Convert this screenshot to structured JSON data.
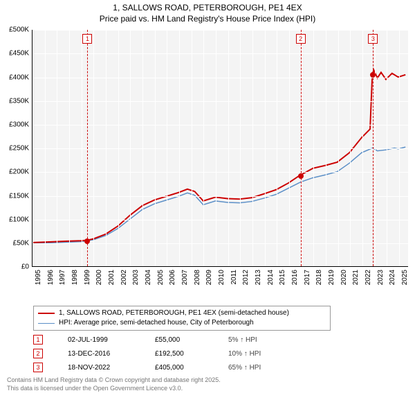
{
  "titles": {
    "line1": "1, SALLOWS ROAD, PETERBOROUGH, PE1 4EX",
    "line2": "Price paid vs. HM Land Registry's House Price Index (HPI)"
  },
  "chart": {
    "type": "line",
    "background": "#f4f4f4",
    "grid_color": "#ffffff",
    "xlim": [
      1995,
      2025.8
    ],
    "ylim": [
      0,
      500000
    ],
    "xticks": [
      1995,
      1996,
      1997,
      1998,
      1999,
      2000,
      2001,
      2002,
      2003,
      2004,
      2005,
      2006,
      2007,
      2008,
      2009,
      2010,
      2011,
      2012,
      2013,
      2014,
      2015,
      2016,
      2017,
      2018,
      2019,
      2020,
      2021,
      2022,
      2023,
      2024,
      2025
    ],
    "yticks": [
      0,
      50000,
      100000,
      150000,
      200000,
      250000,
      300000,
      350000,
      400000,
      450000,
      500000
    ],
    "ytick_labels": [
      "£0",
      "£50K",
      "£100K",
      "£150K",
      "£200K",
      "£250K",
      "£300K",
      "£350K",
      "£400K",
      "£450K",
      "£500K"
    ],
    "series": [
      {
        "id": "price_paid",
        "label": "1, SALLOWS ROAD, PETERBOROUGH, PE1 4EX (semi-detached house)",
        "color": "#cc0000",
        "width": 2,
        "points": [
          [
            1995.0,
            50000
          ],
          [
            1996.0,
            51000
          ],
          [
            1997.0,
            52000
          ],
          [
            1998.0,
            53000
          ],
          [
            1999.0,
            54000
          ],
          [
            1999.5,
            55000
          ],
          [
            2000.0,
            58000
          ],
          [
            2001.0,
            68000
          ],
          [
            2002.0,
            85000
          ],
          [
            2003.0,
            108000
          ],
          [
            2004.0,
            128000
          ],
          [
            2005.0,
            140000
          ],
          [
            2006.0,
            148000
          ],
          [
            2007.0,
            156000
          ],
          [
            2007.7,
            163000
          ],
          [
            2008.3,
            158000
          ],
          [
            2009.0,
            138000
          ],
          [
            2010.0,
            146000
          ],
          [
            2011.0,
            143000
          ],
          [
            2012.0,
            142000
          ],
          [
            2013.0,
            145000
          ],
          [
            2014.0,
            153000
          ],
          [
            2015.0,
            162000
          ],
          [
            2016.0,
            176000
          ],
          [
            2016.95,
            192500
          ],
          [
            2017.5,
            200000
          ],
          [
            2018.0,
            207000
          ],
          [
            2019.0,
            213000
          ],
          [
            2020.0,
            220000
          ],
          [
            2021.0,
            240000
          ],
          [
            2022.0,
            272000
          ],
          [
            2022.7,
            290000
          ],
          [
            2022.88,
            405000
          ],
          [
            2023.0,
            415000
          ],
          [
            2023.3,
            398000
          ],
          [
            2023.6,
            410000
          ],
          [
            2024.0,
            395000
          ],
          [
            2024.5,
            408000
          ],
          [
            2025.0,
            400000
          ],
          [
            2025.6,
            405000
          ]
        ]
      },
      {
        "id": "hpi",
        "label": "HPI: Average price, semi-detached house, City of Peterborough",
        "color": "#5b8fc7",
        "width": 1.5,
        "points": [
          [
            1995.0,
            48000
          ],
          [
            1996.0,
            49000
          ],
          [
            1997.0,
            50000
          ],
          [
            1998.0,
            51000
          ],
          [
            1999.0,
            52000
          ],
          [
            2000.0,
            56000
          ],
          [
            2001.0,
            65000
          ],
          [
            2002.0,
            80000
          ],
          [
            2003.0,
            100000
          ],
          [
            2004.0,
            120000
          ],
          [
            2005.0,
            132000
          ],
          [
            2006.0,
            140000
          ],
          [
            2007.0,
            148000
          ],
          [
            2007.7,
            155000
          ],
          [
            2008.3,
            150000
          ],
          [
            2009.0,
            130000
          ],
          [
            2010.0,
            138000
          ],
          [
            2011.0,
            135000
          ],
          [
            2012.0,
            134000
          ],
          [
            2013.0,
            137000
          ],
          [
            2014.0,
            144000
          ],
          [
            2015.0,
            152000
          ],
          [
            2016.0,
            165000
          ],
          [
            2017.0,
            178000
          ],
          [
            2018.0,
            187000
          ],
          [
            2019.0,
            193000
          ],
          [
            2020.0,
            200000
          ],
          [
            2021.0,
            218000
          ],
          [
            2022.0,
            240000
          ],
          [
            2022.9,
            250000
          ],
          [
            2023.3,
            244000
          ],
          [
            2024.0,
            246000
          ],
          [
            2024.7,
            250000
          ],
          [
            2025.0,
            248000
          ],
          [
            2025.6,
            252000
          ]
        ]
      }
    ],
    "markers": [
      {
        "n": "1",
        "x": 1999.5,
        "y": 55000,
        "color": "#cc0000"
      },
      {
        "n": "2",
        "x": 2016.95,
        "y": 192500,
        "color": "#cc0000"
      },
      {
        "n": "3",
        "x": 2022.88,
        "y": 405000,
        "color": "#cc0000"
      }
    ]
  },
  "legend": {
    "items": [
      {
        "color": "#cc0000",
        "width": 2,
        "label": "1, SALLOWS ROAD, PETERBOROUGH, PE1 4EX (semi-detached house)"
      },
      {
        "color": "#5b8fc7",
        "width": 1.5,
        "label": "HPI: Average price, semi-detached house, City of Peterborough"
      }
    ]
  },
  "sales": [
    {
      "n": "1",
      "date": "02-JUL-1999",
      "price": "£55,000",
      "delta": "5% ↑ HPI"
    },
    {
      "n": "2",
      "date": "13-DEC-2016",
      "price": "£192,500",
      "delta": "10% ↑ HPI"
    },
    {
      "n": "3",
      "date": "18-NOV-2022",
      "price": "£405,000",
      "delta": "65% ↑ HPI"
    }
  ],
  "footer": {
    "line1": "Contains HM Land Registry data © Crown copyright and database right 2025.",
    "line2": "This data is licensed under the Open Government Licence v3.0."
  }
}
